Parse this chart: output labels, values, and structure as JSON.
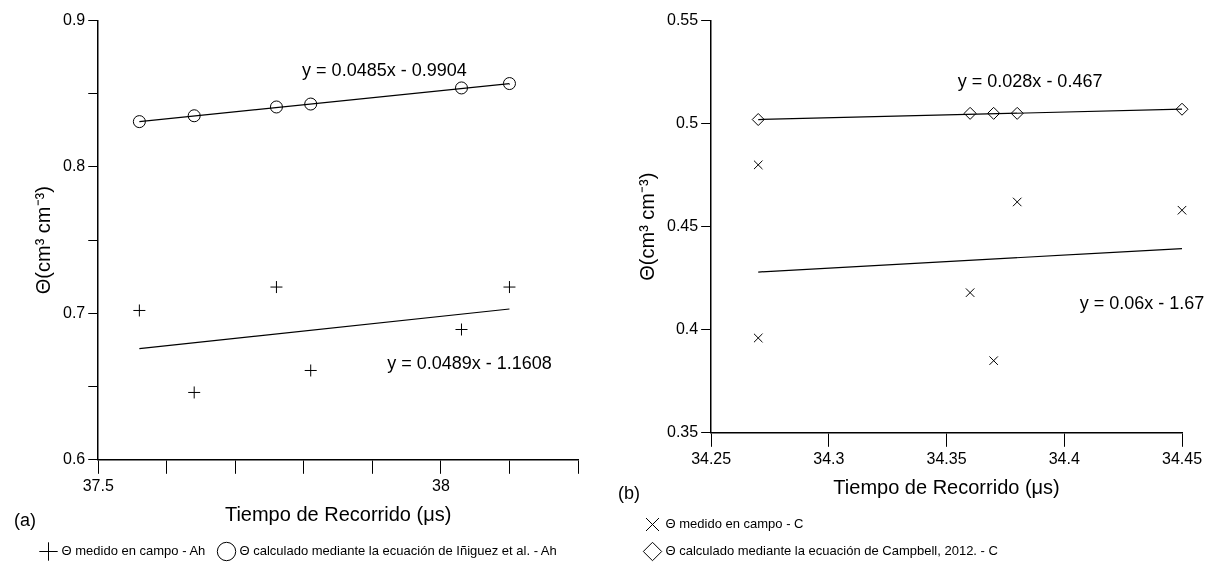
{
  "chart_data": [
    {
      "type": "scatter",
      "xlabel": "Tiempo de Recorrido (μs)",
      "ylabel": "Θ(cm³ cm⁻³)",
      "xlim": [
        37.5,
        38.2
      ],
      "xticks": [
        37.5,
        {
          "value": 37.6,
          "label": null
        },
        {
          "value": 37.7,
          "label": null
        },
        {
          "value": 37.8,
          "label": null
        },
        {
          "value": 37.9,
          "label": null
        },
        38,
        {
          "value": 38.1,
          "label": null
        },
        {
          "value": 38.2,
          "label": null
        }
      ],
      "ylim": [
        0.6,
        0.9
      ],
      "yticks": [
        0.6,
        {
          "value": 0.65,
          "label": null
        },
        0.7,
        {
          "value": 0.75,
          "label": null
        },
        0.8,
        {
          "value": 0.85,
          "label": null
        },
        0.9
      ],
      "grid": false,
      "legend": "bottom",
      "annotations": [
        "(a)",
        "y = 0.0485x - 0.9904",
        "y = 0.0489x - 1.1608"
      ],
      "series": [
        {
          "name": "Θ medido en campo - Ah",
          "type": "scatter",
          "marker": "cross",
          "color": "#000000",
          "x": [
            37.56,
            37.64,
            37.76,
            37.81,
            38.03,
            38.1
          ],
          "values": [
            0.702,
            0.646,
            0.718,
            0.661,
            0.689,
            0.718
          ]
        },
        {
          "name": "Θ calculado mediante la ecuación de Iñiguez et al. - Ah",
          "type": "scatter",
          "marker": "circle",
          "color": "#000000",
          "x": [
            37.56,
            37.64,
            37.76,
            37.81,
            38.03,
            38.1
          ],
          "values": [
            0.831,
            0.835,
            0.841,
            0.843,
            0.854,
            0.857
          ]
        },
        {
          "type": "line",
          "marker": "none",
          "color": "#000000",
          "x": [
            37.56,
            38.1
          ],
          "values": [
            0.831,
            0.857
          ]
        },
        {
          "type": "line",
          "marker": "none",
          "color": "#000000",
          "x": [
            37.56,
            38.1
          ],
          "values": [
            0.676,
            0.703
          ]
        }
      ]
    },
    {
      "type": "scatter",
      "xlabel": "Tiempo de Recorrido (μs)",
      "ylabel": "Θ(cm³ cm⁻³)",
      "xlim": [
        34.25,
        34.45
      ],
      "xticks": [
        34.25,
        34.3,
        34.35,
        34.4,
        34.45
      ],
      "ylim": [
        0.35,
        0.55
      ],
      "yticks": [
        0.35,
        0.4,
        0.45,
        0.5,
        0.55
      ],
      "grid": false,
      "legend": "bottom",
      "annotations": [
        "(b)",
        "y = 0.028x - 0.467",
        "y = 0.06x - 1.67"
      ],
      "series": [
        {
          "name": "Θ medido en campo - C",
          "type": "scatter",
          "marker": "x",
          "color": "#000000",
          "x": [
            34.27,
            34.27,
            34.36,
            34.37,
            34.38,
            34.45
          ],
          "values": [
            0.48,
            0.396,
            0.418,
            0.385,
            0.462,
            0.458
          ]
        },
        {
          "name": "Θ calculado mediante la ecuación de Campbell, 2012. - C",
          "type": "scatter",
          "marker": "diamond",
          "color": "#000000",
          "x": [
            34.27,
            34.36,
            34.37,
            34.38,
            34.45
          ],
          "values": [
            0.502,
            0.505,
            0.505,
            0.505,
            0.507
          ]
        },
        {
          "type": "line",
          "marker": "none",
          "color": "#000000",
          "x": [
            34.27,
            34.45
          ],
          "values": [
            0.502,
            0.507
          ]
        },
        {
          "type": "line",
          "marker": "none",
          "color": "#000000",
          "x": [
            34.27,
            34.45
          ],
          "values": [
            0.428,
            0.4394
          ]
        }
      ]
    }
  ]
}
